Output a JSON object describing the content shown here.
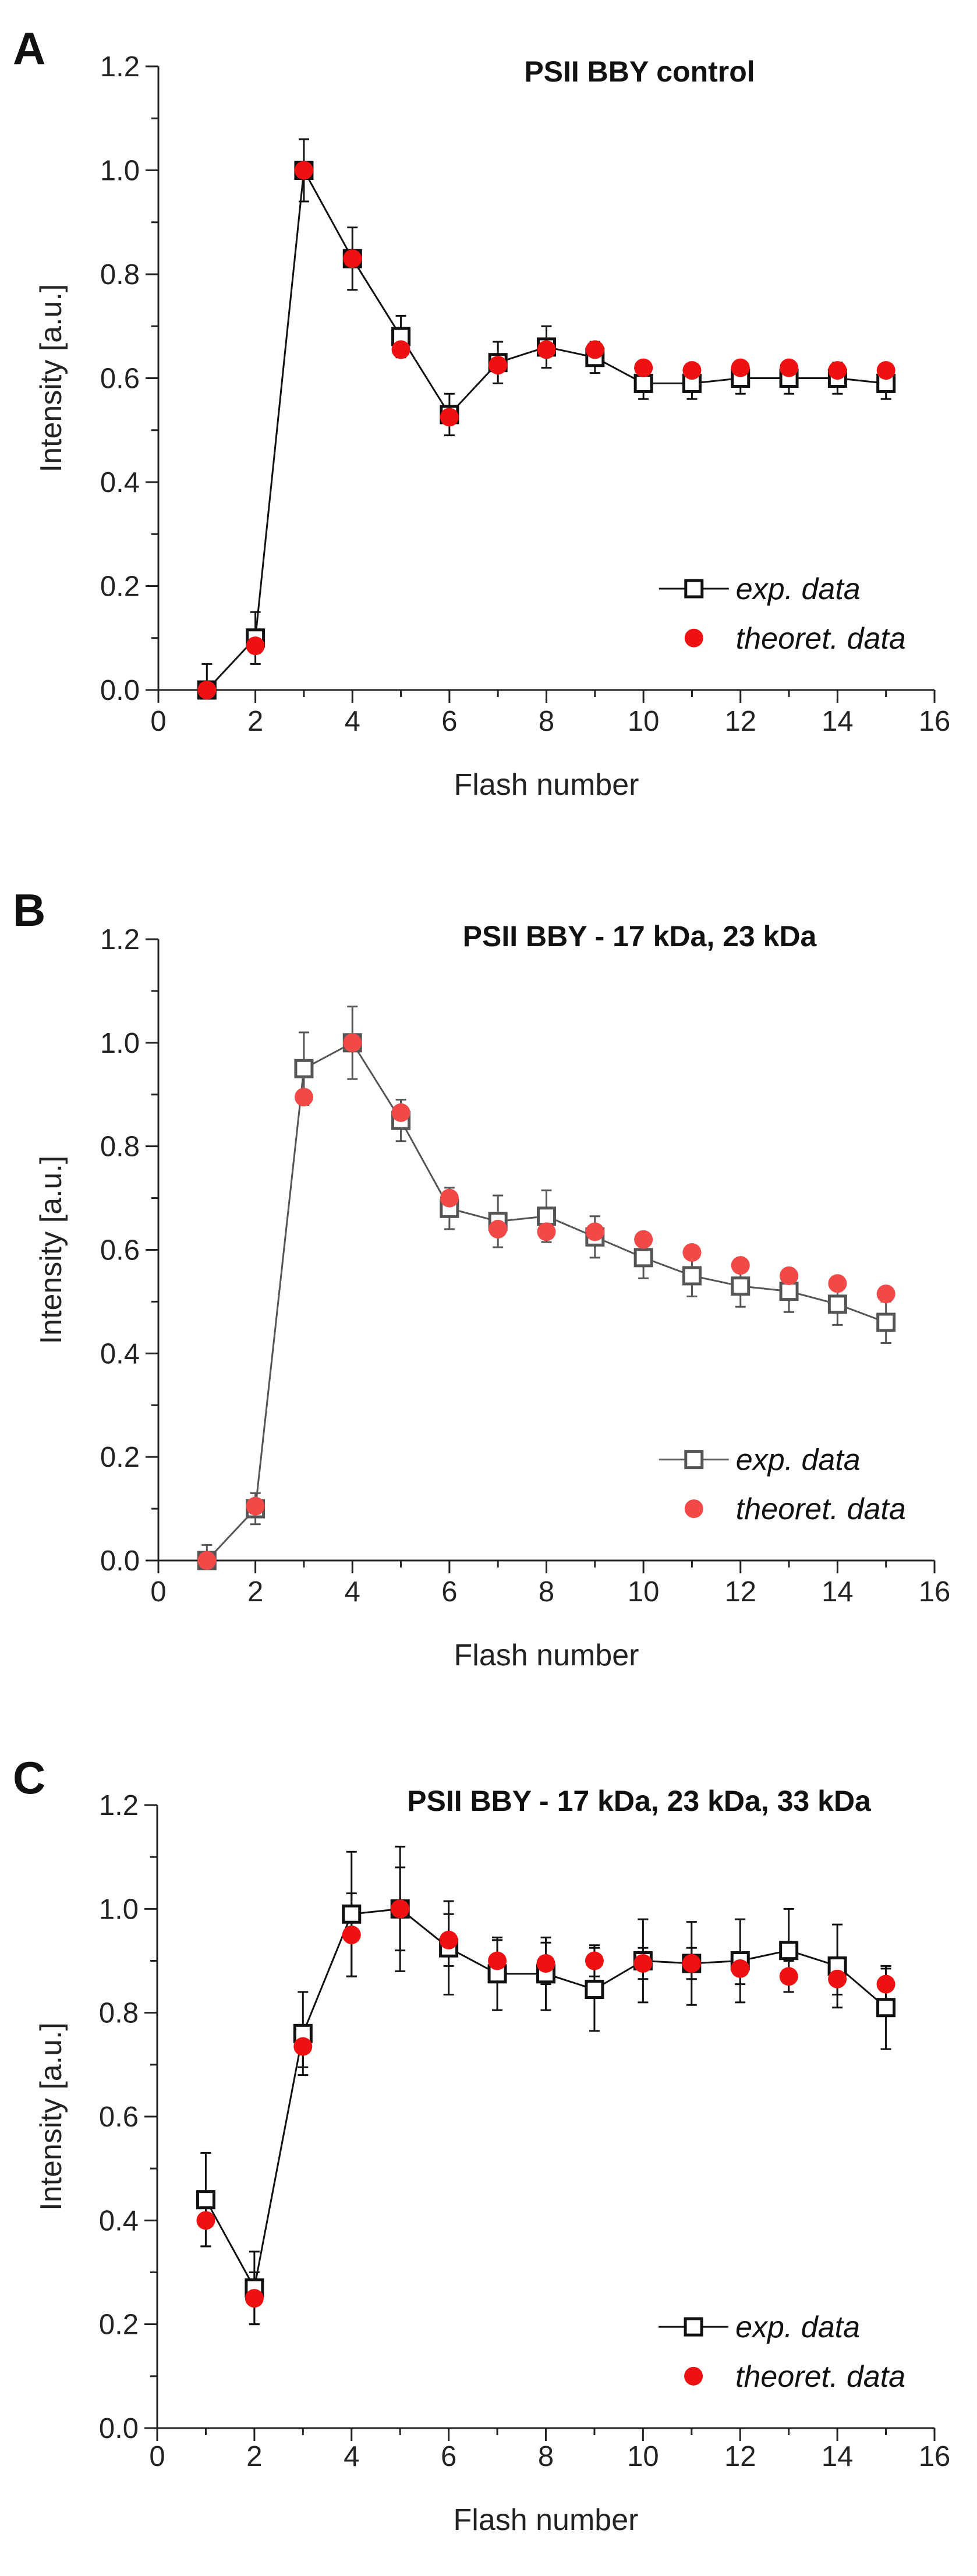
{
  "colors": {
    "exp_stroke": "#111111",
    "exp_stroke_b": "#555555",
    "theor": "#ee1111",
    "theor_b": "#f14848",
    "axis": "#222222"
  },
  "chart_data": [
    {
      "panel": "A",
      "type": "line",
      "title": "PSII BBY control",
      "xlabel": "Flash number",
      "ylabel": "Intensity [a.u.]",
      "xlim": [
        0,
        16
      ],
      "ylim": [
        0.0,
        1.2
      ],
      "xticks": [
        "0",
        "2",
        "4",
        "6",
        "8",
        "10",
        "12",
        "14",
        "16"
      ],
      "yticks": [
        "0.0",
        "0.2",
        "0.4",
        "0.6",
        "0.8",
        "1.0",
        "1.2"
      ],
      "legend_position": "bottom-right",
      "series": [
        {
          "name": "exp. data",
          "marker": "open-square",
          "connected": true,
          "x": [
            1,
            2,
            3,
            4,
            5,
            6,
            7,
            8,
            9,
            10,
            11,
            12,
            13,
            14,
            15
          ],
          "y": [
            0.0,
            0.1,
            1.0,
            0.83,
            0.68,
            0.53,
            0.63,
            0.66,
            0.64,
            0.59,
            0.59,
            0.6,
            0.6,
            0.6,
            0.59
          ],
          "err": [
            0.05,
            0.05,
            0.06,
            0.06,
            0.04,
            0.04,
            0.04,
            0.04,
            0.03,
            0.03,
            0.03,
            0.03,
            0.03,
            0.03,
            0.03
          ]
        },
        {
          "name": "theoret. data",
          "marker": "filled-circle",
          "connected": false,
          "x": [
            1,
            2,
            3,
            4,
            5,
            6,
            7,
            8,
            9,
            10,
            11,
            12,
            13,
            14,
            15
          ],
          "y": [
            0.0,
            0.085,
            1.0,
            0.83,
            0.655,
            0.525,
            0.625,
            0.655,
            0.655,
            0.62,
            0.615,
            0.62,
            0.62,
            0.615,
            0.615
          ]
        }
      ]
    },
    {
      "panel": "B",
      "type": "line",
      "title": "PSII BBY - 17 kDa, 23 kDa",
      "xlabel": "Flash number",
      "ylabel": "Intensity [a.u.]",
      "xlim": [
        0,
        16
      ],
      "ylim": [
        0.0,
        1.2
      ],
      "xticks": [
        "0",
        "2",
        "4",
        "6",
        "8",
        "10",
        "12",
        "14",
        "16"
      ],
      "yticks": [
        "0.0",
        "0.2",
        "0.4",
        "0.6",
        "0.8",
        "1.0",
        "1.2"
      ],
      "legend_position": "bottom-right",
      "series": [
        {
          "name": "exp. data",
          "marker": "open-square",
          "connected": true,
          "x": [
            1,
            2,
            3,
            4,
            5,
            6,
            7,
            8,
            9,
            10,
            11,
            12,
            13,
            14,
            15
          ],
          "y": [
            0.0,
            0.1,
            0.95,
            1.0,
            0.85,
            0.68,
            0.655,
            0.665,
            0.625,
            0.585,
            0.55,
            0.53,
            0.52,
            0.495,
            0.46
          ],
          "err": [
            0.03,
            0.03,
            0.07,
            0.07,
            0.04,
            0.04,
            0.05,
            0.05,
            0.04,
            0.04,
            0.04,
            0.04,
            0.04,
            0.04,
            0.04
          ]
        },
        {
          "name": "theoret. data",
          "marker": "filled-circle",
          "connected": false,
          "x": [
            1,
            2,
            3,
            4,
            5,
            6,
            7,
            8,
            9,
            10,
            11,
            12,
            13,
            14,
            15
          ],
          "y": [
            0.0,
            0.105,
            0.895,
            1.0,
            0.865,
            0.7,
            0.64,
            0.635,
            0.635,
            0.62,
            0.595,
            0.57,
            0.55,
            0.535,
            0.515
          ]
        }
      ]
    },
    {
      "panel": "C",
      "type": "line",
      "title": "PSII BBY - 17 kDa, 23 kDa, 33 kDa",
      "xlabel": "Flash number",
      "ylabel": "Intensity [a.u.]",
      "xlim": [
        0,
        16
      ],
      "ylim": [
        0.0,
        1.2
      ],
      "xticks": [
        "0",
        "2",
        "4",
        "6",
        "8",
        "10",
        "12",
        "14",
        "16"
      ],
      "yticks": [
        "0.0",
        "0.2",
        "0.4",
        "0.6",
        "0.8",
        "1.0",
        "1.2"
      ],
      "legend_position": "bottom-right",
      "series": [
        {
          "name": "exp. data",
          "marker": "open-square",
          "connected": true,
          "x": [
            1,
            2,
            3,
            4,
            5,
            6,
            7,
            8,
            9,
            10,
            11,
            12,
            13,
            14,
            15
          ],
          "y": [
            0.44,
            0.27,
            0.76,
            0.99,
            1.0,
            0.925,
            0.875,
            0.875,
            0.845,
            0.9,
            0.895,
            0.9,
            0.92,
            0.89,
            0.81
          ],
          "err": [
            0.09,
            0.07,
            0.08,
            0.12,
            0.12,
            0.09,
            0.07,
            0.07,
            0.08,
            0.08,
            0.08,
            0.08,
            0.08,
            0.08,
            0.08
          ]
        },
        {
          "name": "theoret. data",
          "marker": "filled-circle",
          "connected": false,
          "x": [
            1,
            2,
            3,
            4,
            5,
            6,
            7,
            8,
            9,
            10,
            11,
            12,
            13,
            14,
            15
          ],
          "y": [
            0.4,
            0.25,
            0.735,
            0.95,
            1.0,
            0.94,
            0.9,
            0.895,
            0.9,
            0.895,
            0.895,
            0.885,
            0.87,
            0.865,
            0.855
          ],
          "err": [
            0.05,
            0.05,
            0.04,
            0.08,
            0.08,
            0.05,
            0.04,
            0.04,
            0.03,
            0.03,
            0.03,
            0.03,
            0.03,
            0.03,
            0.03
          ]
        }
      ]
    }
  ]
}
